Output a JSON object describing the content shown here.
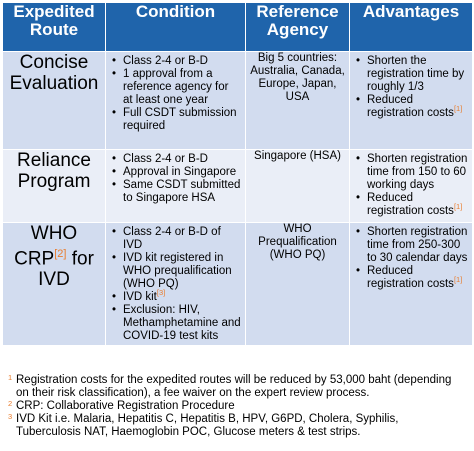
{
  "header": {
    "route": "Expedited Route",
    "condition": "Condition",
    "agency": "Reference Agency",
    "advantages": "Advantages"
  },
  "rows": [
    {
      "route": "Concise Evaluation",
      "conditions": [
        "Class 2-4 or B-D",
        "1 approval from a reference agency for at least one year",
        "Full CSDT submission required"
      ],
      "agency": "Big 5 countries: Australia, Canada, Europe, Japan, USA",
      "advantages": [
        "Shorten the registration time by roughly 1/3",
        "Reduced registration costs"
      ],
      "adv_ref": "[1]"
    },
    {
      "route": "Reliance Program",
      "conditions": [
        "Class 2-4 or B-D",
        "Approval in Singapore",
        "Same CSDT submitted to Singapore HSA"
      ],
      "agency": "Singapore (HSA)",
      "advantages": [
        "Shorten registration time from 150 to 60 working days",
        "Reduced registration costs"
      ],
      "adv_ref": "[1]"
    },
    {
      "route_top": "WHO",
      "route_mid": "CRP",
      "route_ref": "[2]",
      "route_mid_after": " for",
      "route_bottom": "IVD",
      "conditions": [
        "Class 2-4 or B-D of IVD",
        "IVD kit registered in WHO prequalification (WHO PQ)",
        "IVD kit",
        "Exclusion: HIV, Methamphetamine and COVID-19 test kits"
      ],
      "ivd_ref": "[3]",
      "agency": "WHO Prequalification (WHO PQ)",
      "advantages": [
        "Shorten registration time from 250-300 to 30 calendar days",
        "Reduced registration costs"
      ],
      "adv_ref": "[1]"
    }
  ],
  "footnotes": [
    {
      "num": "1",
      "text": "Registration costs for the expedited routes will be reduced by 53,000 baht (depending on their risk classification), a fee waiver on the expert review process."
    },
    {
      "num": "2",
      "text": "CRP: Collaborative Registration Procedure"
    },
    {
      "num": "3",
      "text": "IVD Kit i.e. Malaria, Hepatitis C, Hepatitis B, HPV, G6PD, Cholera, Syphilis, Tuberculosis NAT, Haemoglobin POC, Glucose meters & test strips."
    }
  ],
  "colors": {
    "header_bg": "#1f64ab",
    "row_dark": "#d2dcef",
    "row_light": "#eaeef7",
    "ref_orange": "#e97d2e"
  }
}
